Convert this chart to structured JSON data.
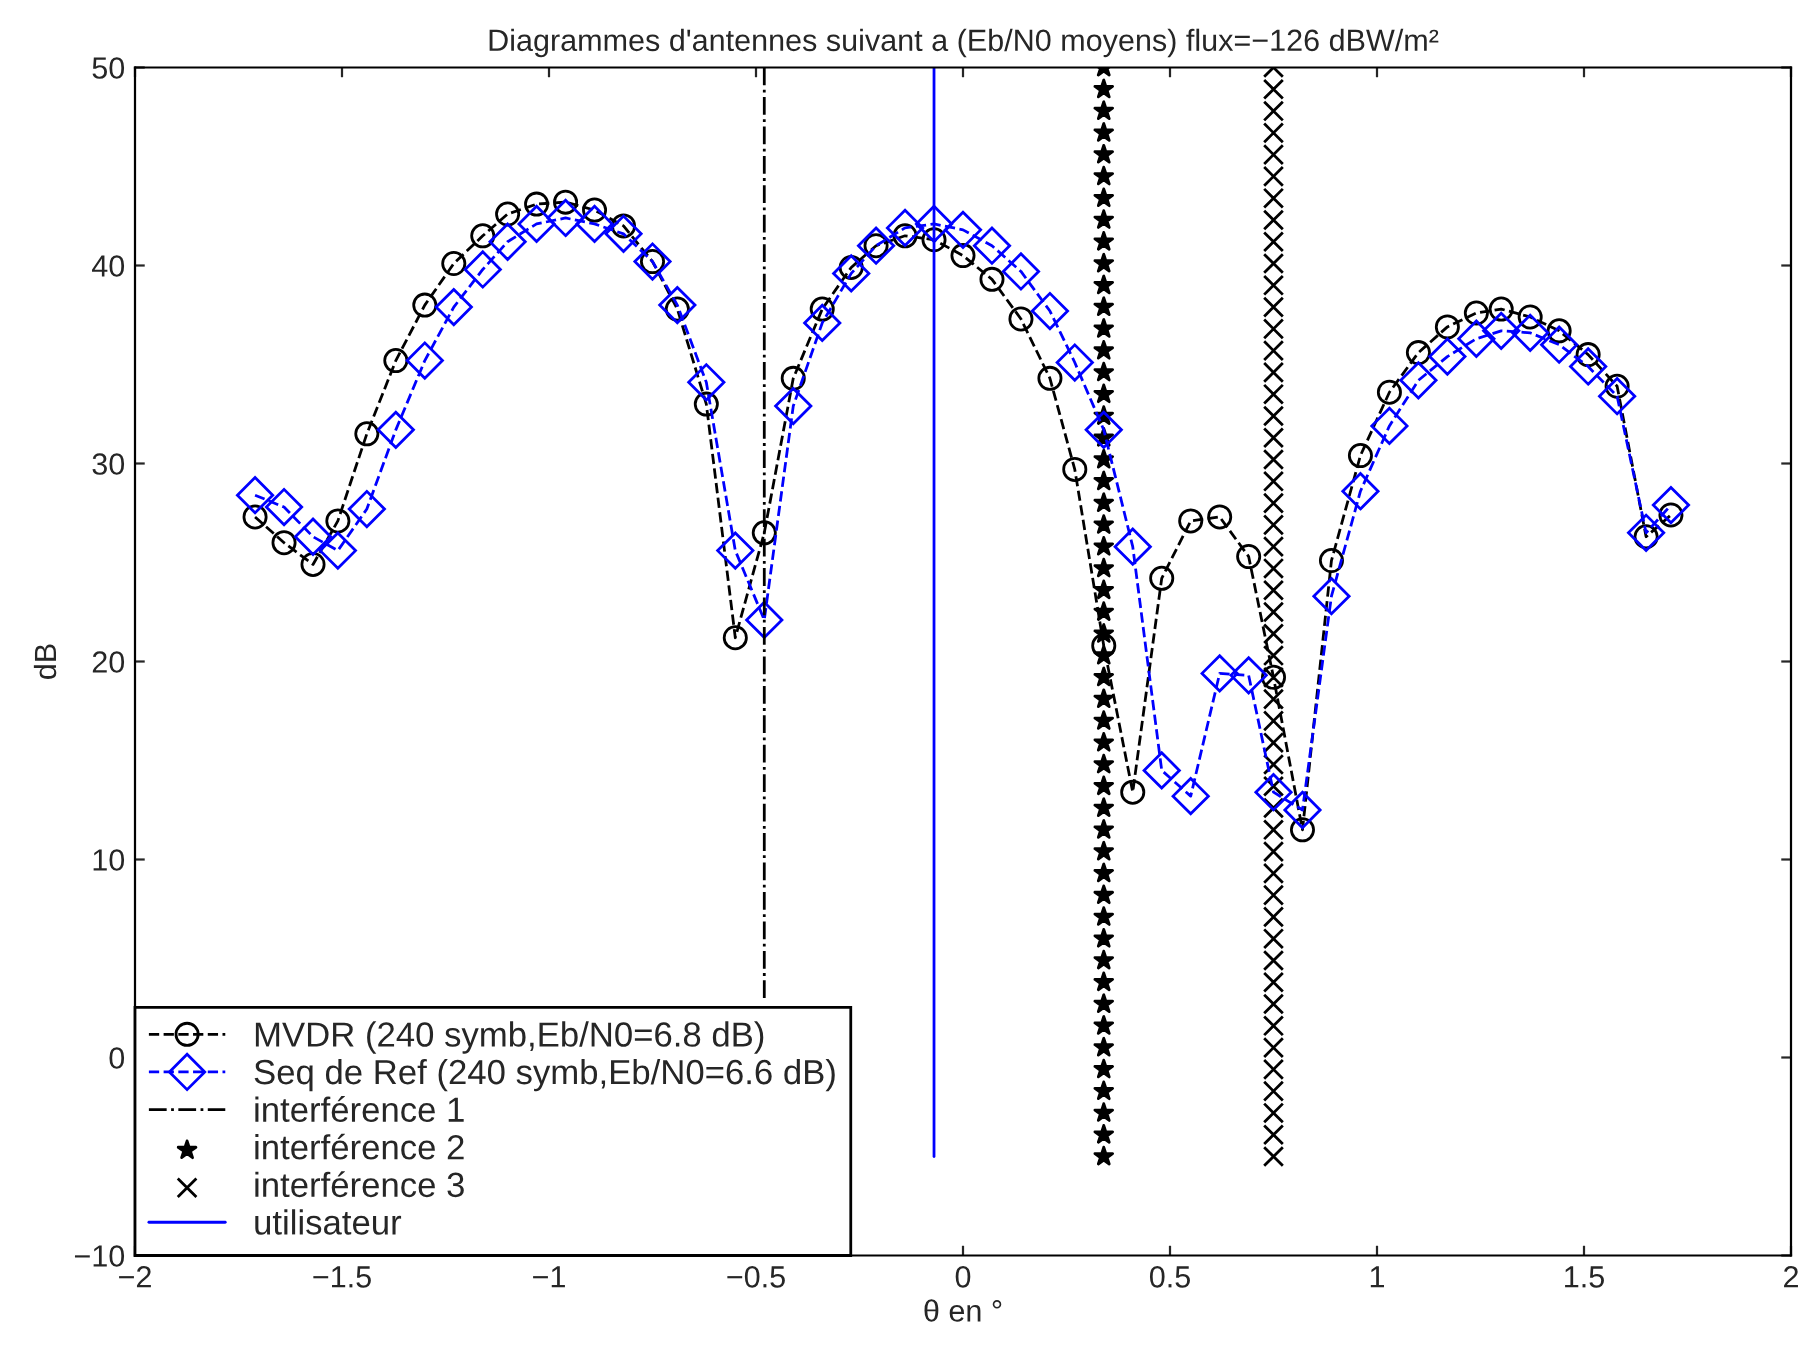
{
  "chart_data": {
    "type": "line",
    "title": "Diagrammes d'antennes suivant a (Eb/N0 moyens) flux=−126 dBW/m²",
    "xlabel": "θ en °",
    "ylabel": "dB",
    "xlim": [
      -2,
      2
    ],
    "xticks": [
      {
        "value": -2,
        "label": "−2"
      },
      {
        "value": -1.5,
        "label": "−1.5"
      },
      {
        "value": -1,
        "label": "−1"
      },
      {
        "value": -0.5,
        "label": "−0.5"
      },
      0,
      0.5,
      1,
      1.5,
      2
    ],
    "ylim": [
      -10,
      50
    ],
    "yticks": [
      {
        "value": -10,
        "label": "−10"
      },
      0,
      10,
      20,
      30,
      40,
      50
    ],
    "grid": false,
    "legend": "bottom left",
    "series": [
      {
        "name": "MVDR (240 symb,Eb/N0=6.8 dB)",
        "color": "#000000",
        "marker": "circle",
        "line_style": "dashed",
        "x": [
          -1.71,
          -1.64,
          -1.57,
          -1.51,
          -1.44,
          -1.37,
          -1.3,
          -1.23,
          -1.16,
          -1.1,
          -1.03,
          -0.96,
          -0.89,
          -0.82,
          -0.75,
          -0.69,
          -0.62,
          -0.55,
          -0.48,
          -0.41,
          -0.34,
          -0.27,
          -0.21,
          -0.14,
          -0.07,
          0.0,
          0.07,
          0.14,
          0.21,
          0.27,
          0.34,
          0.41,
          0.48,
          0.55,
          0.62,
          0.69,
          0.75,
          0.82,
          0.89,
          0.96,
          1.03,
          1.1,
          1.17,
          1.24,
          1.3,
          1.37,
          1.44,
          1.51,
          1.58,
          1.65,
          1.71
        ],
        "values": [
          27.3,
          26.0,
          24.9,
          27.1,
          31.5,
          35.2,
          38.0,
          40.1,
          41.5,
          42.6,
          43.1,
          43.2,
          42.8,
          42.0,
          40.2,
          37.8,
          33.0,
          21.2,
          26.5,
          34.3,
          37.8,
          39.9,
          41.0,
          41.5,
          41.3,
          40.5,
          39.3,
          37.3,
          34.3,
          29.7,
          20.8,
          13.4,
          24.2,
          27.1,
          27.3,
          25.3,
          19.2,
          11.5,
          25.1,
          30.4,
          33.6,
          35.6,
          36.9,
          37.6,
          37.8,
          37.4,
          36.7,
          35.5,
          33.9,
          26.3,
          27.4
        ]
      },
      {
        "name": "Seq de Ref (240 symb,Eb/N0=6.6 dB)",
        "color": "#0000ff",
        "marker": "diamond",
        "line_style": "dashed",
        "x": [
          -1.71,
          -1.64,
          -1.57,
          -1.51,
          -1.44,
          -1.37,
          -1.3,
          -1.23,
          -1.16,
          -1.1,
          -1.03,
          -0.96,
          -0.89,
          -0.82,
          -0.75,
          -0.69,
          -0.62,
          -0.55,
          -0.48,
          -0.41,
          -0.34,
          -0.27,
          -0.21,
          -0.14,
          -0.07,
          0.0,
          0.07,
          0.14,
          0.21,
          0.27,
          0.34,
          0.41,
          0.48,
          0.55,
          0.62,
          0.69,
          0.75,
          0.82,
          0.89,
          0.96,
          1.03,
          1.1,
          1.17,
          1.24,
          1.3,
          1.37,
          1.44,
          1.51,
          1.58,
          1.65,
          1.71
        ],
        "values": [
          28.4,
          27.8,
          26.3,
          25.6,
          27.7,
          31.7,
          35.2,
          37.9,
          39.8,
          41.2,
          42.1,
          42.4,
          42.1,
          41.6,
          40.2,
          38.0,
          34.1,
          25.6,
          22.1,
          32.9,
          37.1,
          39.6,
          41.0,
          41.9,
          42.1,
          41.8,
          41.0,
          39.7,
          37.7,
          35.1,
          31.7,
          25.8,
          14.5,
          13.2,
          19.4,
          19.3,
          13.4,
          12.5,
          23.3,
          28.6,
          31.9,
          34.2,
          35.4,
          36.3,
          36.7,
          36.6,
          36.0,
          34.9,
          33.4,
          26.5,
          27.9
        ]
      },
      {
        "name": "interférence 1",
        "color": "#000000",
        "marker": "none",
        "line_style": "dashdot",
        "x": [
          -0.48,
          -0.48
        ],
        "values": [
          3,
          50
        ]
      },
      {
        "name": "interférence 2",
        "type": "scatter",
        "color": "#000000",
        "marker": "star",
        "x": [
          0.34,
          0.34,
          0.34,
          0.34,
          0.34,
          0.34,
          0.34,
          0.34,
          0.34,
          0.34,
          0.34,
          0.34,
          0.34,
          0.34,
          0.34,
          0.34,
          0.34,
          0.34,
          0.34,
          0.34,
          0.34,
          0.34,
          0.34,
          0.34,
          0.34,
          0.34,
          0.34,
          0.34,
          0.34,
          0.34,
          0.34,
          0.34,
          0.34,
          0.34,
          0.34,
          0.34,
          0.34,
          0.34,
          0.34,
          0.34,
          0.34,
          0.34,
          0.34,
          0.34,
          0.34,
          0.34,
          0.34,
          0.34,
          0.34,
          0.34,
          0.34
        ],
        "values": [
          -5,
          -3.9,
          -2.8,
          -1.7,
          -0.6,
          0.5,
          1.6,
          2.7,
          3.8,
          4.9,
          6,
          7.1,
          8.2,
          9.3,
          10.4,
          11.5,
          12.6,
          13.7,
          14.8,
          15.9,
          17,
          18.1,
          19.2,
          20.3,
          21.4,
          22.5,
          23.6,
          24.7,
          25.8,
          26.9,
          28,
          29.1,
          30.2,
          31.3,
          32.4,
          33.5,
          34.6,
          35.7,
          36.8,
          37.9,
          39,
          40.1,
          41.2,
          42.3,
          43.4,
          44.5,
          45.6,
          46.7,
          47.8,
          48.9,
          50
        ]
      },
      {
        "name": "interférence 3",
        "type": "scatter",
        "color": "#000000",
        "marker": "cross",
        "x": [
          0.75,
          0.75,
          0.75,
          0.75,
          0.75,
          0.75,
          0.75,
          0.75,
          0.75,
          0.75,
          0.75,
          0.75,
          0.75,
          0.75,
          0.75,
          0.75,
          0.75,
          0.75,
          0.75,
          0.75,
          0.75,
          0.75,
          0.75,
          0.75,
          0.75,
          0.75,
          0.75,
          0.75,
          0.75,
          0.75,
          0.75,
          0.75,
          0.75,
          0.75,
          0.75,
          0.75,
          0.75,
          0.75,
          0.75,
          0.75,
          0.75,
          0.75,
          0.75,
          0.75,
          0.75,
          0.75,
          0.75,
          0.75,
          0.75,
          0.75,
          0.75
        ],
        "values": [
          -5,
          -3.9,
          -2.8,
          -1.7,
          -0.6,
          0.5,
          1.6,
          2.7,
          3.8,
          4.9,
          6,
          7.1,
          8.2,
          9.3,
          10.4,
          11.5,
          12.6,
          13.7,
          14.8,
          15.9,
          17,
          18.1,
          19.2,
          20.3,
          21.4,
          22.5,
          23.6,
          24.7,
          25.8,
          26.9,
          28,
          29.1,
          30.2,
          31.3,
          32.4,
          33.5,
          34.6,
          35.7,
          36.8,
          37.9,
          39,
          40.1,
          41.2,
          42.3,
          43.4,
          44.5,
          45.6,
          46.7,
          47.8,
          48.9,
          50
        ]
      },
      {
        "name": "utilisateur",
        "color": "#0000ff",
        "marker": "none",
        "line_style": "solid",
        "x": [
          -0.07,
          -0.07
        ],
        "values": [
          -5,
          50
        ]
      }
    ]
  }
}
